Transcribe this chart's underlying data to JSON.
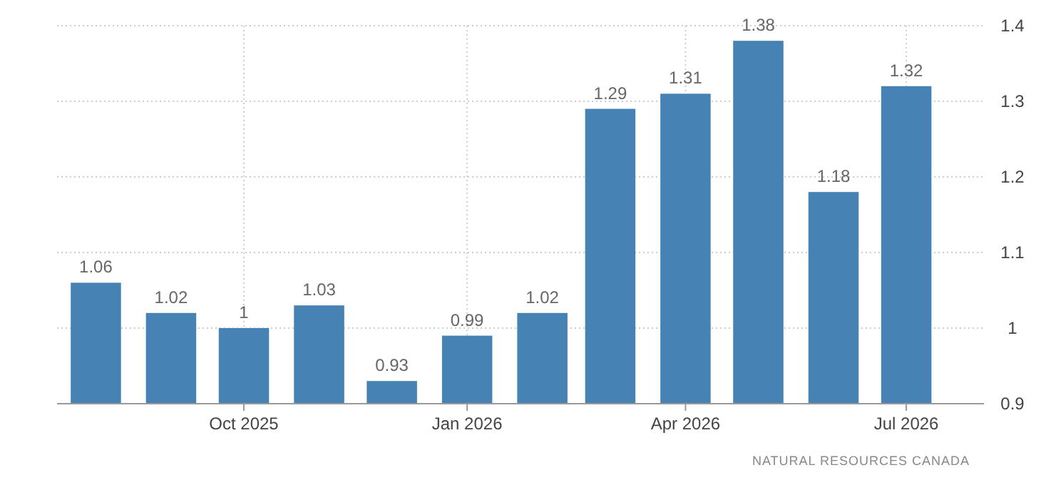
{
  "chart_data": {
    "type": "bar",
    "x": [
      "2025-08",
      "2025-09",
      "2025-10",
      "2025-11",
      "2025-12",
      "2026-01",
      "2026-02",
      "2026-03",
      "2026-04",
      "2026-05",
      "2026-06",
      "2026-07"
    ],
    "values": [
      1.06,
      1.02,
      1,
      1.03,
      0.93,
      0.99,
      1.02,
      1.29,
      1.31,
      1.38,
      1.18,
      1.32
    ],
    "color": "#4682b4",
    "data_labels": true,
    "xlim": [
      "2025-07-16",
      "2026-08-02"
    ],
    "xticks": [
      {
        "value": "2025-10",
        "label": "Oct 2025"
      },
      {
        "value": "2026-01",
        "label": "Jan 2026"
      },
      {
        "value": "2026-04",
        "label": "Apr 2026"
      },
      {
        "value": "2026-07",
        "label": "Jul 2026"
      }
    ],
    "ylim": [
      0.9,
      1.4
    ],
    "yticks": [
      0.9,
      1,
      1.1,
      1.2,
      1.3,
      1.4
    ],
    "grid": true,
    "annotations": [
      "NATURAL RESOURCES CANADA"
    ]
  }
}
